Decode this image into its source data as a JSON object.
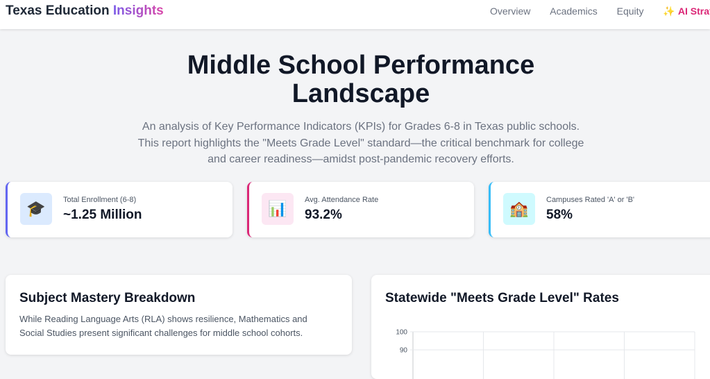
{
  "nav": {
    "brand_main": "Texas Education",
    "brand_accent": "Insights",
    "links": [
      "Overview",
      "Academics",
      "Equity"
    ],
    "ai_link": "AI Strateg"
  },
  "hero": {
    "title_line1": "Middle School Performance",
    "title_line2": "Landscape",
    "subtitle": "An analysis of Key Performance Indicators (KPIs) for Grades 6-8 in Texas public schools. This report highlights the \"Meets Grade Level\" standard—the critical benchmark for college and career readiness—amidst post-pandemic recovery efforts."
  },
  "kpis": [
    {
      "label": "Total Enrollment (6-8)",
      "value": "~1.25 Million",
      "icon": "graduation-cap-icon",
      "icon_glyph": "🎓"
    },
    {
      "label": "Avg. Attendance Rate",
      "value": "93.2%",
      "icon": "bar-chart-icon",
      "icon_glyph": "📊"
    },
    {
      "label": "Campuses Rated 'A' or 'B'",
      "value": "58%",
      "icon": "school-building-icon",
      "icon_glyph": "🏫"
    }
  ],
  "mastery_card": {
    "title": "Subject Mastery Breakdown",
    "description": "While Reading Language Arts (RLA) shows resilience, Mathematics and Social Studies present significant challenges for middle school cohorts."
  },
  "chart_card": {
    "title": "Statewide \"Meets Grade Level\" Rates"
  },
  "chart_data": {
    "type": "bar",
    "title": "Statewide \"Meets Grade Level\" Rates",
    "ylim": [
      0,
      100
    ],
    "y_ticks_visible": [
      100,
      90
    ],
    "grid": true
  },
  "colors": {
    "brand_gradient_start": "#7c5ce8",
    "brand_gradient_end": "#d946a8",
    "ai_link": "#db2777",
    "kpi_border_1": "#6366f1",
    "kpi_border_2": "#db2777",
    "kpi_border_3": "#38bdf8"
  }
}
